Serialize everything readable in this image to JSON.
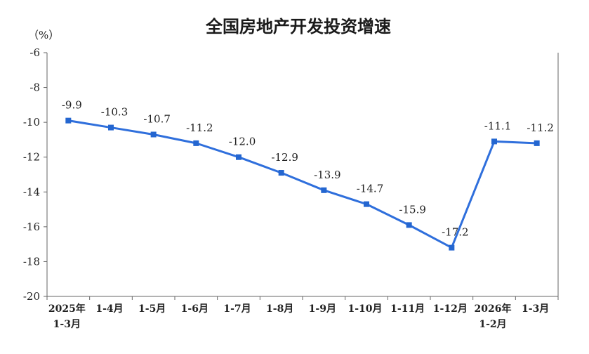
{
  "chart_data": {
    "type": "line",
    "title": "全国房地产开发投资增速",
    "ylabel": "（%）",
    "ylim": [
      -20,
      -6
    ],
    "yticks": [
      "-6",
      "-8",
      "-10",
      "-12",
      "-14",
      "-16",
      "-18",
      "-20"
    ],
    "categories": [
      [
        "2025年",
        "1-3月"
      ],
      [
        "1-4月"
      ],
      [
        "1-5月"
      ],
      [
        "1-6月"
      ],
      [
        "1-7月"
      ],
      [
        "1-8月"
      ],
      [
        "1-9月"
      ],
      [
        "1-10月"
      ],
      [
        "1-11月"
      ],
      [
        "1-12月"
      ],
      [
        "2026年",
        "1-2月"
      ],
      [
        "1-3月"
      ]
    ],
    "series": [
      {
        "values": [
          -9.9,
          -10.3,
          -10.7,
          -11.2,
          -12.0,
          -12.9,
          -13.9,
          -14.7,
          -15.9,
          -17.2,
          -11.1,
          -11.2
        ],
        "labels": [
          "-9.9",
          "-10.3",
          "-10.7",
          "-11.2",
          "-12.0",
          "-12.9",
          "-13.9",
          "-14.7",
          "-15.9",
          "-17.2",
          "-11.1",
          "-11.2"
        ],
        "color": "#2f6fdc"
      }
    ],
    "legend": "none",
    "grid": false
  }
}
